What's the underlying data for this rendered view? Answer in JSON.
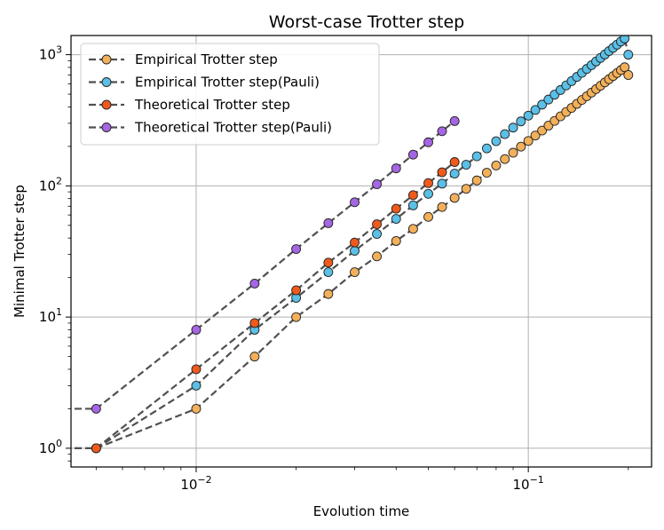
{
  "chart_data": {
    "type": "line",
    "title": "Worst-case Trotter step",
    "xlabel": "Evolution time",
    "ylabel": "Minimal Trotter step",
    "xscale": "log",
    "yscale": "log",
    "xlim": [
      0.0042,
      0.235
    ],
    "ylim": [
      0.72,
      1400
    ],
    "x_ticks": [
      {
        "value": 0.01,
        "base": "10",
        "exp": "−2"
      },
      {
        "value": 0.1,
        "base": "10",
        "exp": "−1"
      }
    ],
    "y_ticks": [
      {
        "value": 1,
        "base": "10",
        "exp": "0"
      },
      {
        "value": 10,
        "base": "10",
        "exp": "1"
      },
      {
        "value": 100,
        "base": "10",
        "exp": "2"
      },
      {
        "value": 1000,
        "base": "10",
        "exp": "3"
      }
    ],
    "grid": true,
    "legend_position": "upper-left",
    "line_style": "dashed",
    "line_color": "#505050",
    "series": [
      {
        "name": "Empirical Trotter step",
        "color": "#f2b05a",
        "x": [
          0.0001,
          0.005,
          0.01,
          0.015,
          0.02,
          0.025,
          0.03,
          0.035,
          0.04,
          0.045,
          0.05,
          0.055,
          0.06,
          0.065,
          0.07,
          0.075,
          0.08,
          0.085,
          0.09,
          0.095,
          0.1,
          0.105,
          0.11,
          0.115,
          0.12,
          0.125,
          0.13,
          0.135,
          0.14,
          0.145,
          0.15,
          0.155,
          0.16,
          0.165,
          0.17,
          0.175,
          0.18,
          0.185,
          0.19,
          0.195,
          0.2
        ],
        "y": [
          1,
          1,
          2,
          5,
          10,
          15,
          22,
          29,
          38,
          47,
          58,
          69,
          81,
          95,
          110,
          126,
          143,
          160,
          179,
          199,
          220,
          242,
          264,
          288,
          313,
          339,
          366,
          393,
          422,
          452,
          482,
          514,
          547,
          580,
          615,
          650,
          687,
          724,
          763,
          802,
          700
        ]
      },
      {
        "name": "Empirical Trotter step(Pauli)",
        "color": "#5bbfe6",
        "x": [
          0.0001,
          0.005,
          0.01,
          0.015,
          0.02,
          0.025,
          0.03,
          0.035,
          0.04,
          0.045,
          0.05,
          0.055,
          0.06,
          0.065,
          0.07,
          0.075,
          0.08,
          0.085,
          0.09,
          0.095,
          0.1,
          0.105,
          0.11,
          0.115,
          0.12,
          0.125,
          0.13,
          0.135,
          0.14,
          0.145,
          0.15,
          0.155,
          0.16,
          0.165,
          0.17,
          0.175,
          0.18,
          0.185,
          0.19,
          0.195,
          0.2
        ],
        "y": [
          1,
          1,
          3,
          8,
          14,
          22,
          32,
          43,
          56,
          71,
          87,
          104,
          124,
          145,
          168,
          193,
          219,
          248,
          278,
          310,
          343,
          379,
          416,
          455,
          496,
          538,
          583,
          629,
          677,
          727,
          779,
          832,
          888,
          945,
          1004,
          1065,
          1128,
          1193,
          1260,
          1329,
          1000
        ]
      },
      {
        "name": "Theoretical Trotter step",
        "color": "#ef5a1c",
        "x": [
          0.0001,
          0.005,
          0.01,
          0.015,
          0.02,
          0.025,
          0.03,
          0.035,
          0.04,
          0.045,
          0.05,
          0.055,
          0.06
        ],
        "y": [
          1,
          1,
          4,
          9,
          16,
          26,
          37,
          51,
          67,
          85,
          105,
          127,
          152
        ]
      },
      {
        "name": "Theoretical Trotter step(Pauli)",
        "color": "#a566e3",
        "x": [
          0.0001,
          0.005,
          0.01,
          0.015,
          0.02,
          0.025,
          0.03,
          0.035,
          0.04,
          0.045,
          0.05,
          0.055,
          0.06
        ],
        "y": [
          2,
          2,
          8,
          18,
          33,
          52,
          75,
          103,
          136,
          173,
          215,
          261,
          312
        ]
      }
    ]
  }
}
